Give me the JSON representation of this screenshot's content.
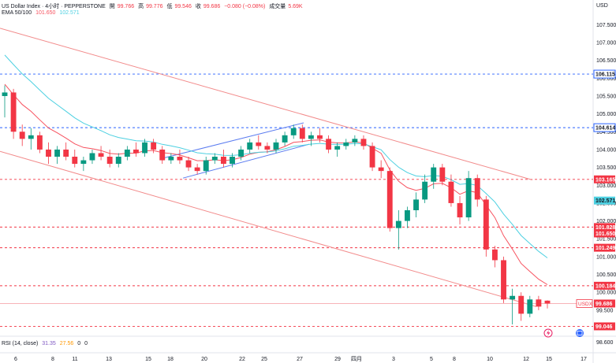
{
  "header": {
    "symbol": "US Dollar Index · 4小时 · PEPPERSTONE",
    "open_label": "開",
    "open": "99.766",
    "high_label": "高",
    "high": "99.776",
    "low_label": "低",
    "low": "99.546",
    "close_label": "收",
    "close": "99.686",
    "change": "−0.080 (−0.08%)",
    "volume_label": "成交量",
    "volume": "5.69K",
    "ema_label": "EMA 50/100",
    "ema50": "101.650",
    "ema100": "102.571"
  },
  "rsi": {
    "label": "RSI (14, close)",
    "v1": "31.35",
    "v2": "27.56",
    "v3": "0",
    "v4": "0"
  },
  "currency": "USD",
  "colors": {
    "up": "#089981",
    "down": "#f23645",
    "ema50": "#f7525f",
    "ema100": "#4dd0e1",
    "channel": "#5b7cf0",
    "blue_level": "#2962ff"
  },
  "icons": {
    "flash": "flash-icon",
    "calendar": "calendar-icon"
  },
  "chart_data": {
    "type": "candlestick",
    "timeframe": "4h",
    "ylim": [
      98.35,
      107.75
    ],
    "y_ticks": [
      "107.500",
      "107.000",
      "106.500",
      "106.000",
      "105.500",
      "105.000",
      "104.500",
      "104.000",
      "103.500",
      "103.000",
      "102.500",
      "102.000",
      "101.500",
      "101.000",
      "100.500",
      "100.000",
      "99.500",
      "99.000",
      "98.600"
    ],
    "x_ticks": [
      "6",
      "8",
      "11",
      "13",
      "15",
      "18",
      "20",
      "22",
      "25",
      "27",
      "29",
      "四月",
      "3",
      "5",
      "8",
      "10",
      "12",
      "15",
      "17"
    ],
    "price_labels": [
      {
        "value": 106.115,
        "text": "106.115",
        "kind": "blue"
      },
      {
        "value": 104.614,
        "text": "104.614",
        "kind": "blue"
      },
      {
        "value": 103.165,
        "text": "103.165",
        "kind": "red"
      },
      {
        "value": 102.571,
        "text": "102.571",
        "kind": "cyan"
      },
      {
        "value": 101.828,
        "text": "101.828",
        "kind": "red"
      },
      {
        "value": 101.65,
        "text": "101.650",
        "kind": "red"
      },
      {
        "value": 101.249,
        "text": "101.249",
        "kind": "red"
      },
      {
        "value": 100.184,
        "text": "100.184",
        "kind": "red"
      },
      {
        "value": 99.686,
        "text": "99.686",
        "kind": "last",
        "tag": "USDX"
      },
      {
        "value": 99.046,
        "text": "99.046",
        "kind": "red"
      }
    ],
    "levels": [
      {
        "value": 106.115,
        "color": "blue"
      },
      {
        "value": 104.614,
        "color": "blue"
      },
      {
        "value": 103.165,
        "color": "red"
      },
      {
        "value": 101.828,
        "color": "red"
      },
      {
        "value": 101.249,
        "color": "red"
      },
      {
        "value": 100.184,
        "color": "red"
      },
      {
        "value": 99.046,
        "color": "red"
      }
    ],
    "candles": [
      [
        105.5,
        105.8,
        104.9,
        105.6
      ],
      [
        105.6,
        105.7,
        104.3,
        104.5
      ],
      [
        104.5,
        104.7,
        104.1,
        104.3
      ],
      [
        104.3,
        104.6,
        104.0,
        104.4
      ],
      [
        104.4,
        104.5,
        103.9,
        104.0
      ],
      [
        104.0,
        104.2,
        103.6,
        103.8
      ],
      [
        103.8,
        104.1,
        103.6,
        104.0
      ],
      [
        104.0,
        104.2,
        103.7,
        103.8
      ],
      [
        103.8,
        104.0,
        103.5,
        103.6
      ],
      [
        103.6,
        103.8,
        103.4,
        103.7
      ],
      [
        103.7,
        104.0,
        103.6,
        103.9
      ],
      [
        103.9,
        104.1,
        103.7,
        103.8
      ],
      [
        103.8,
        104.0,
        103.5,
        103.6
      ],
      [
        103.6,
        103.9,
        103.5,
        103.8
      ],
      [
        103.8,
        104.1,
        103.7,
        104.0
      ],
      [
        104.0,
        104.2,
        103.8,
        103.9
      ],
      [
        103.9,
        104.3,
        103.8,
        104.2
      ],
      [
        104.2,
        104.3,
        103.9,
        104.0
      ],
      [
        104.0,
        104.1,
        103.6,
        103.7
      ],
      [
        103.7,
        103.9,
        103.6,
        103.8
      ],
      [
        103.8,
        104.0,
        103.6,
        103.7
      ],
      [
        103.7,
        103.8,
        103.4,
        103.5
      ],
      [
        103.5,
        103.6,
        103.3,
        103.4
      ],
      [
        103.4,
        103.8,
        103.3,
        103.7
      ],
      [
        103.7,
        103.9,
        103.6,
        103.8
      ],
      [
        103.8,
        104.0,
        103.5,
        103.6
      ],
      [
        103.6,
        103.9,
        103.5,
        103.8
      ],
      [
        103.8,
        104.1,
        103.7,
        104.0
      ],
      [
        104.0,
        104.3,
        103.9,
        104.2
      ],
      [
        104.2,
        104.4,
        104.0,
        104.1
      ],
      [
        104.1,
        104.2,
        103.9,
        104.0
      ],
      [
        104.0,
        104.3,
        103.9,
        104.2
      ],
      [
        104.2,
        104.5,
        104.1,
        104.4
      ],
      [
        104.4,
        104.7,
        104.3,
        104.6
      ],
      [
        104.6,
        104.7,
        104.2,
        104.3
      ],
      [
        104.3,
        104.5,
        104.1,
        104.4
      ],
      [
        104.4,
        104.6,
        104.2,
        104.3
      ],
      [
        104.3,
        104.4,
        103.9,
        104.0
      ],
      [
        104.0,
        104.2,
        103.8,
        104.1
      ],
      [
        104.1,
        104.3,
        104.0,
        104.2
      ],
      [
        104.2,
        104.4,
        104.1,
        104.3
      ],
      [
        104.3,
        104.4,
        104.0,
        104.1
      ],
      [
        104.1,
        104.2,
        103.4,
        103.5
      ],
      [
        103.5,
        103.7,
        103.2,
        103.4
      ],
      [
        103.4,
        103.5,
        101.7,
        101.8
      ],
      [
        101.8,
        102.3,
        101.2,
        102.0
      ],
      [
        102.0,
        102.4,
        101.8,
        102.3
      ],
      [
        102.3,
        102.8,
        102.1,
        102.6
      ],
      [
        102.6,
        103.3,
        102.5,
        103.1
      ],
      [
        103.1,
        103.6,
        102.9,
        103.5
      ],
      [
        103.5,
        103.6,
        103.0,
        103.1
      ],
      [
        103.1,
        103.3,
        102.4,
        102.5
      ],
      [
        102.5,
        102.7,
        101.9,
        102.1
      ],
      [
        102.1,
        103.4,
        102.0,
        103.2
      ],
      [
        103.2,
        103.3,
        102.4,
        102.6
      ],
      [
        102.6,
        102.7,
        101.0,
        101.2
      ],
      [
        101.2,
        101.3,
        100.7,
        100.9
      ],
      [
        100.9,
        101.0,
        99.7,
        99.8
      ],
      [
        99.8,
        100.1,
        99.1,
        99.9
      ],
      [
        99.9,
        100.0,
        99.2,
        99.4
      ],
      [
        99.4,
        99.9,
        99.3,
        99.8
      ],
      [
        99.8,
        99.9,
        99.5,
        99.6
      ],
      [
        99.766,
        99.776,
        99.546,
        99.686
      ]
    ]
  }
}
